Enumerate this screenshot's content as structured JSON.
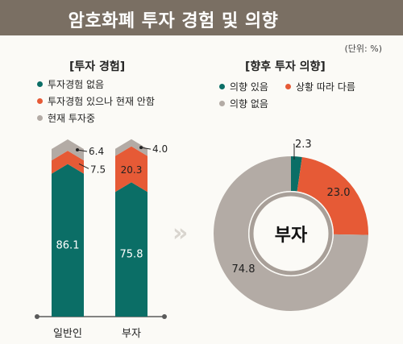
{
  "title": "암호화폐 투자 경험 및 의향",
  "unit": "(단위: %)",
  "colors": {
    "teal": "#0b6e66",
    "orange": "#e65a36",
    "gray": "#b3aba5",
    "title_bg": "#7a6f63"
  },
  "legend_left": [
    {
      "label": "투자경험 없음",
      "color": "#0b6e66"
    },
    {
      "label": "투자경험 있으나 현재 안함",
      "color": "#e65a36"
    },
    {
      "label": "현재 투자중",
      "color": "#b3aba5"
    }
  ],
  "legend_right": [
    {
      "label": "의향 있음",
      "color": "#0b6e66"
    },
    {
      "label": "상황 따라 다름",
      "color": "#e65a36"
    },
    {
      "label": "의향 없음",
      "color": "#b3aba5"
    }
  ],
  "chart_data": [
    {
      "type": "bar",
      "title": "[투자 경험]",
      "stacked": true,
      "categories": [
        "일반인",
        "부자"
      ],
      "series": [
        {
          "name": "투자경험 없음",
          "values": [
            86.1,
            75.8
          ]
        },
        {
          "name": "투자경험 있으나 현재 안함",
          "values": [
            7.5,
            20.3
          ]
        },
        {
          "name": "현재 투자중",
          "values": [
            6.4,
            4.0
          ]
        }
      ],
      "value_labels": [
        [
          "86.1",
          "75.8"
        ],
        [
          "7.5",
          "20.3"
        ],
        [
          "6.4",
          "4.0"
        ]
      ],
      "ylim": [
        0,
        100
      ]
    },
    {
      "type": "pie",
      "donut": true,
      "title": "[향후 투자 의향]",
      "center_label": "부자",
      "labels": [
        "의향 있음",
        "상황 따라 다름",
        "의향 없음"
      ],
      "values": [
        2.3,
        23.0,
        74.8
      ],
      "value_labels": [
        "2.3",
        "23.0",
        "74.8"
      ]
    }
  ]
}
